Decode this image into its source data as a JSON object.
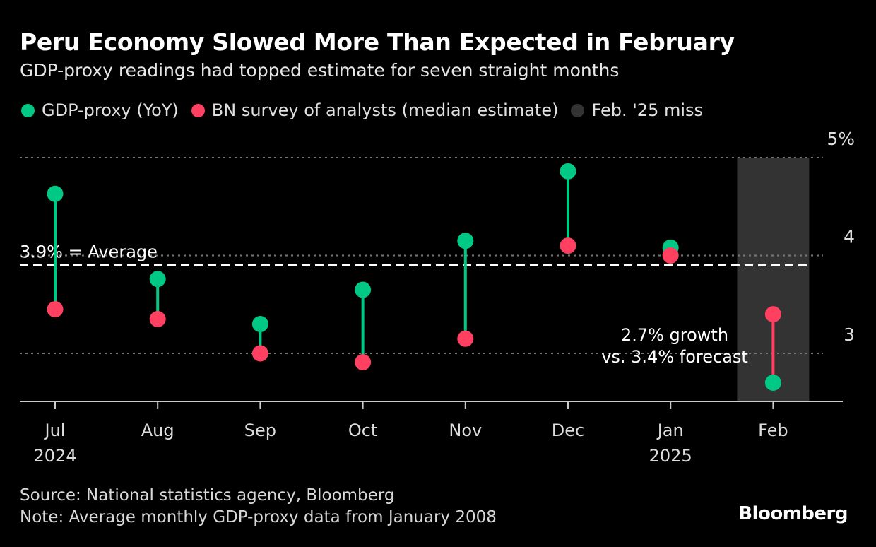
{
  "header": {
    "title": "Peru Economy Slowed More Than Expected in February",
    "subtitle": "GDP-proxy readings had topped estimate for seven straight months"
  },
  "legend": [
    {
      "label": "GDP-proxy (YoY)",
      "color": "#00c985"
    },
    {
      "label": "BN survey of analysts (median estimate)",
      "color": "#ff4060"
    },
    {
      "label": "Feb. '25 miss",
      "color": "#333333"
    }
  ],
  "footer": {
    "source": "Source: National statistics agency, Bloomberg",
    "note": "Note: Average monthly GDP-proxy data from January 2008",
    "brand": "Bloomberg"
  },
  "chart_data": {
    "type": "dumbbell",
    "title": "Peru Economy Slowed More Than Expected in February",
    "subtitle": "GDP-proxy readings had topped estimate for seven straight months",
    "categories": [
      "Jul",
      "Aug",
      "Sep",
      "Oct",
      "Nov",
      "Dec",
      "Jan",
      "Feb"
    ],
    "year_labels": {
      "0": "2024",
      "6": "2025"
    },
    "series": [
      {
        "name": "GDP-proxy (YoY)",
        "color": "#00c985",
        "values": [
          4.63,
          3.76,
          3.3,
          3.65,
          4.15,
          4.86,
          4.08,
          2.7
        ]
      },
      {
        "name": "BN survey of analysts (median estimate)",
        "color": "#ff4060",
        "values": [
          3.45,
          3.35,
          3.0,
          2.91,
          3.15,
          4.1,
          4.0,
          3.4
        ]
      }
    ],
    "yticks": [
      {
        "value": 5,
        "label": "5%"
      },
      {
        "value": 4,
        "label": "4"
      },
      {
        "value": 3,
        "label": "3"
      }
    ],
    "ylim": [
      2.51,
      5.0
    ],
    "grid": true,
    "reference_line": {
      "value": 3.9,
      "label": "3.9% = Average"
    },
    "highlight": {
      "category_index": 7,
      "label": "Feb. '25 miss",
      "color": "#333333"
    },
    "annotation": {
      "category_index": 7,
      "lines": [
        "2.7% growth",
        "vs. 3.4% forecast"
      ]
    },
    "legend_position": "top-left"
  }
}
